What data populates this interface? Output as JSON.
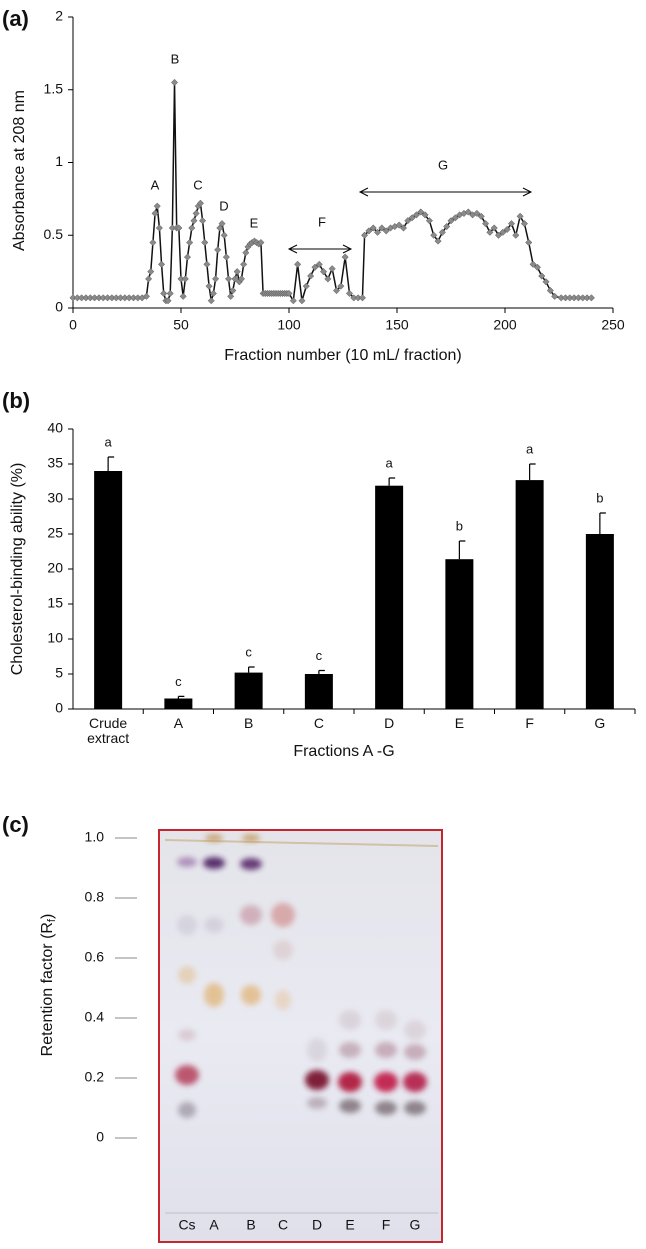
{
  "chart_data": [
    {
      "type": "line",
      "panel_label": "(a)",
      "x_label": "Fraction number (10 mL/ fraction)",
      "y_label": "Absorbance at  208 nm",
      "color": "#111111",
      "marker_color": "#8a8a8a",
      "xlim": [
        0,
        250
      ],
      "xticks": [
        0,
        50,
        100,
        150,
        200,
        250
      ],
      "ylim": [
        0,
        2
      ],
      "yticks": [
        0,
        0.5,
        1,
        1.5,
        2
      ],
      "annotations": [
        "A",
        "B",
        "C",
        "D",
        "E",
        "F",
        "G"
      ],
      "x": [
        0,
        2,
        4,
        6,
        8,
        10,
        12,
        14,
        16,
        18,
        20,
        22,
        24,
        26,
        28,
        30,
        32,
        34,
        35,
        36,
        37,
        38,
        39,
        40,
        41,
        42,
        43,
        44,
        45,
        46,
        47,
        48,
        49,
        50,
        51,
        52,
        53,
        54,
        55,
        56,
        57,
        58,
        59,
        60,
        61,
        62,
        63,
        64,
        65,
        66,
        67,
        68,
        69,
        70,
        71,
        72,
        73,
        74,
        75,
        76,
        77,
        78,
        79,
        80,
        81,
        82,
        83,
        84,
        85,
        86,
        87,
        88,
        89,
        90,
        91,
        92,
        93,
        94,
        95,
        96,
        97,
        98,
        99,
        100,
        102,
        104,
        106,
        108,
        110,
        112,
        114,
        116,
        118,
        120,
        122,
        124,
        126,
        128,
        130,
        132,
        134,
        135,
        137,
        139,
        141,
        143,
        145,
        147,
        149,
        151,
        153,
        155,
        157,
        159,
        161,
        163,
        165,
        167,
        169,
        171,
        173,
        175,
        177,
        179,
        181,
        183,
        185,
        187,
        189,
        191,
        193,
        195,
        197,
        199,
        201,
        203,
        205,
        207,
        209,
        211,
        213,
        215,
        217,
        219,
        221,
        223,
        226,
        228,
        230,
        232,
        234,
        236,
        238,
        240
      ],
      "values": [
        0.07,
        0.07,
        0.07,
        0.07,
        0.07,
        0.07,
        0.07,
        0.07,
        0.07,
        0.07,
        0.07,
        0.07,
        0.07,
        0.07,
        0.07,
        0.07,
        0.07,
        0.08,
        0.2,
        0.25,
        0.45,
        0.65,
        0.7,
        0.55,
        0.3,
        0.1,
        0.05,
        0.05,
        0.1,
        0.55,
        1.55,
        0.55,
        0.55,
        0.2,
        0.08,
        0.2,
        0.35,
        0.45,
        0.55,
        0.6,
        0.65,
        0.7,
        0.72,
        0.6,
        0.45,
        0.3,
        0.15,
        0.05,
        0.1,
        0.2,
        0.4,
        0.55,
        0.58,
        0.5,
        0.35,
        0.2,
        0.08,
        0.12,
        0.2,
        0.25,
        0.18,
        0.2,
        0.3,
        0.38,
        0.42,
        0.44,
        0.45,
        0.46,
        0.45,
        0.44,
        0.45,
        0.1,
        0.1,
        0.1,
        0.1,
        0.1,
        0.1,
        0.1,
        0.1,
        0.1,
        0.1,
        0.1,
        0.1,
        0.1,
        0.05,
        0.3,
        0.05,
        0.15,
        0.22,
        0.28,
        0.3,
        0.25,
        0.2,
        0.27,
        0.12,
        0.15,
        0.35,
        0.1,
        0.07,
        0.07,
        0.07,
        0.5,
        0.53,
        0.55,
        0.52,
        0.55,
        0.53,
        0.55,
        0.56,
        0.57,
        0.55,
        0.6,
        0.62,
        0.64,
        0.66,
        0.64,
        0.6,
        0.5,
        0.46,
        0.52,
        0.56,
        0.6,
        0.62,
        0.64,
        0.65,
        0.66,
        0.64,
        0.65,
        0.63,
        0.58,
        0.52,
        0.55,
        0.5,
        0.52,
        0.54,
        0.58,
        0.5,
        0.63,
        0.58,
        0.45,
        0.3,
        0.28,
        0.22,
        0.18,
        0.12,
        0.08,
        0.07,
        0.07,
        0.07,
        0.07,
        0.07,
        0.07,
        0.07,
        0.07
      ]
    },
    {
      "type": "bar",
      "panel_label": "(b)",
      "x_label": "Fractions A -G",
      "y_label": "Cholesterol-binding ability (%)",
      "color": "#000000",
      "categories": [
        "Crude extract",
        "A",
        "B",
        "C",
        "D",
        "E",
        "F",
        "G"
      ],
      "values": [
        34,
        1.5,
        5.2,
        5,
        31.9,
        21.4,
        32.7,
        25
      ],
      "errors": [
        2,
        0.3,
        0.8,
        0.5,
        1.1,
        2.6,
        2.3,
        3
      ],
      "significance": [
        "a",
        "c",
        "c",
        "c",
        "a",
        "b",
        "a",
        "b"
      ],
      "ylim": [
        0,
        40
      ],
      "yticks": [
        0,
        5,
        10,
        15,
        20,
        25,
        30,
        35,
        40
      ]
    },
    {
      "type": "image",
      "panel_label": "(c)",
      "y_label": "Retention factor (R",
      "y_label_sub": "f",
      "y_label_end": ")",
      "categories": [
        "Cs",
        "A",
        "B",
        "C",
        "D",
        "E",
        "F",
        "G"
      ],
      "ylim": [
        0,
        1
      ],
      "yticks": [
        0,
        {
          "value": 0.2,
          "label": "0.2"
        },
        {
          "value": 0.4,
          "label": "0.4"
        },
        {
          "value": 0.6,
          "label": "0.6"
        },
        {
          "value": 0.8,
          "label": "0.8"
        },
        {
          "value": 1,
          "label": "1.0"
        }
      ]
    }
  ]
}
